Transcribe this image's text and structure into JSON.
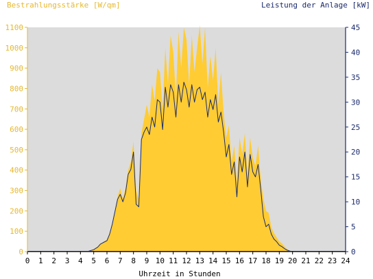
{
  "chart_data": {
    "type": "area",
    "title_left": "Bestrahlungsstärke [W/qm]",
    "title_right": "Leistung der Anlage [kW]",
    "xlabel": "Uhrzeit in Stunden",
    "xlim": [
      0,
      24
    ],
    "ylim_left": [
      0,
      1100
    ],
    "ylim_right": [
      0,
      45
    ],
    "grid": false,
    "x_ticks": [
      "0",
      "1",
      "2",
      "3",
      "4",
      "5",
      "6",
      "7",
      "8",
      "9",
      "10",
      "11",
      "12",
      "13",
      "14",
      "15",
      "16",
      "17",
      "18",
      "19",
      "20",
      "21",
      "22",
      "23",
      "24"
    ],
    "y_left_ticks": [
      "0",
      "100",
      "200",
      "300",
      "400",
      "500",
      "600",
      "700",
      "800",
      "900",
      "1000",
      "1100"
    ],
    "y_right_ticks": [
      "0",
      "5",
      "10",
      "15",
      "20",
      "25",
      "30",
      "35",
      "40",
      "45"
    ],
    "colors": {
      "plot_background": "#dcdcdc",
      "irradiance": "#ffcc33",
      "power": "#1a2a6c",
      "left_axis_text": "#e6b82e",
      "right_axis_text": "#1a2a6c"
    },
    "series": [
      {
        "name": "Bestrahlungsstärke [W/qm]",
        "axis": "left",
        "kind": "area",
        "x": [
          4.5,
          5.0,
          5.3,
          5.5,
          5.7,
          6.0,
          6.2,
          6.4,
          6.6,
          6.8,
          7.0,
          7.2,
          7.4,
          7.6,
          7.8,
          8.0,
          8.2,
          8.4,
          8.6,
          8.8,
          9.0,
          9.2,
          9.4,
          9.6,
          9.8,
          10.0,
          10.2,
          10.4,
          10.6,
          10.8,
          11.0,
          11.2,
          11.4,
          11.6,
          11.8,
          12.0,
          12.2,
          12.4,
          12.6,
          12.8,
          13.0,
          13.2,
          13.4,
          13.6,
          13.8,
          14.0,
          14.2,
          14.4,
          14.6,
          14.8,
          15.0,
          15.2,
          15.4,
          15.6,
          15.8,
          16.0,
          16.2,
          16.4,
          16.6,
          16.8,
          17.0,
          17.2,
          17.4,
          17.6,
          17.8,
          18.0,
          18.2,
          18.4,
          18.6,
          18.8,
          19.0,
          19.2,
          19.4,
          19.6,
          19.8,
          20.0,
          20.3,
          20.6
        ],
        "y": [
          0,
          10,
          25,
          40,
          45,
          60,
          90,
          140,
          200,
          270,
          310,
          260,
          310,
          400,
          440,
          540,
          300,
          260,
          580,
          650,
          720,
          660,
          820,
          740,
          900,
          880,
          700,
          1000,
          820,
          1060,
          980,
          760,
          1080,
          900,
          1100,
          1040,
          820,
          1060,
          880,
          1000,
          1110,
          920,
          1100,
          800,
          960,
          840,
          1000,
          720,
          880,
          680,
          560,
          620,
          440,
          520,
          340,
          560,
          480,
          580,
          380,
          560,
          460,
          420,
          520,
          360,
          260,
          200,
          190,
          120,
          90,
          70,
          50,
          40,
          25,
          10,
          5,
          0,
          0,
          0
        ]
      },
      {
        "name": "Leistung der Anlage [kW]",
        "axis": "right",
        "kind": "line",
        "x": [
          4.5,
          5.0,
          5.3,
          5.5,
          5.7,
          6.0,
          6.2,
          6.4,
          6.6,
          6.8,
          7.0,
          7.2,
          7.4,
          7.6,
          7.8,
          8.0,
          8.2,
          8.4,
          8.6,
          8.8,
          9.0,
          9.2,
          9.4,
          9.6,
          9.8,
          10.0,
          10.2,
          10.4,
          10.6,
          10.8,
          11.0,
          11.2,
          11.4,
          11.6,
          11.8,
          12.0,
          12.2,
          12.4,
          12.6,
          12.8,
          13.0,
          13.2,
          13.4,
          13.6,
          13.8,
          14.0,
          14.2,
          14.4,
          14.6,
          14.8,
          15.0,
          15.2,
          15.4,
          15.6,
          15.8,
          16.0,
          16.2,
          16.4,
          16.6,
          16.8,
          17.0,
          17.2,
          17.4,
          17.6,
          17.8,
          18.0,
          18.2,
          18.4,
          18.6,
          18.8,
          19.0,
          19.2,
          19.4,
          19.6,
          19.8,
          20.0,
          20.3,
          20.6
        ],
        "y": [
          0,
          0.4,
          0.9,
          1.5,
          1.8,
          2.2,
          3.5,
          5.5,
          8,
          10.5,
          11.5,
          10,
          11.8,
          15.5,
          16.5,
          20,
          9.5,
          9,
          22.5,
          24,
          25,
          23.5,
          27,
          25,
          30.5,
          30,
          24.5,
          33,
          29,
          33.5,
          32,
          27,
          33.5,
          30,
          34,
          32.5,
          29,
          33.5,
          30,
          32.5,
          33,
          30.5,
          32,
          27,
          30.5,
          28.5,
          31.5,
          26,
          28,
          24,
          19,
          21.5,
          15.5,
          18,
          11,
          19,
          16,
          20,
          13,
          19.5,
          16,
          15,
          17.5,
          12.5,
          7,
          5,
          5.5,
          3.5,
          2.5,
          2,
          1.3,
          1,
          0.6,
          0.3,
          0.1,
          0,
          0,
          0
        ]
      }
    ]
  }
}
